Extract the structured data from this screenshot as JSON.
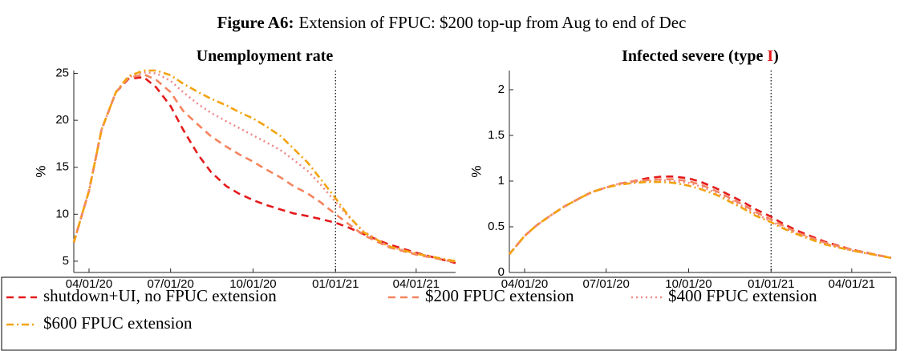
{
  "title": [
    "Figure A6:",
    "Extension of FPUC: $200 top-up from Aug to end of Dec"
  ],
  "chart_data": [
    {
      "type": "line",
      "title": [
        "Unemployment rate"
      ],
      "ylabel": "%",
      "x": [
        "03/15/20",
        "04/01/20",
        "04/15/20",
        "05/01/20",
        "05/15/20",
        "06/01/20",
        "06/15/20",
        "07/01/20",
        "07/15/20",
        "08/01/20",
        "08/15/20",
        "09/01/20",
        "09/15/20",
        "10/01/20",
        "10/15/20",
        "11/01/20",
        "11/15/20",
        "12/01/20",
        "12/15/20",
        "01/01/21",
        "01/15/21",
        "02/01/21",
        "03/01/21",
        "04/01/21",
        "05/15/21"
      ],
      "xlim": [
        "03/15/20",
        "05/15/21"
      ],
      "xticks": [
        "04/01/20",
        "07/01/20",
        "10/01/20",
        "01/01/21",
        "04/01/21"
      ],
      "vline": "01/01/21",
      "ylim": [
        3.8,
        25.3
      ],
      "yticks": [
        5,
        10,
        15,
        20,
        25
      ],
      "series": [
        {
          "name": "shutdown+UI, no FPUC extension",
          "color": "#e41a1c",
          "dash": "dashed",
          "values": [
            7.0,
            12.5,
            19.0,
            23.0,
            24.4,
            24.6,
            23.5,
            21.5,
            19.0,
            16.3,
            14.5,
            13.0,
            12.2,
            11.5,
            11.0,
            10.5,
            10.1,
            9.8,
            9.5,
            9.1,
            8.6,
            7.9,
            6.8,
            5.9,
            4.8
          ]
        },
        {
          "name": "$200 FPUC extension",
          "color": "#f4845f",
          "dash": "dashed",
          "values": [
            7.0,
            12.5,
            19.0,
            23.0,
            24.5,
            24.9,
            24.3,
            23.0,
            21.0,
            19.5,
            18.3,
            17.2,
            16.4,
            15.6,
            14.8,
            13.9,
            13.0,
            12.2,
            11.3,
            10.0,
            9.0,
            7.8,
            6.5,
            5.7,
            4.9
          ]
        },
        {
          "name": "$400 FPUC extension",
          "color": "#f08a8a",
          "dash": "dotted",
          "values": [
            7.0,
            12.5,
            19.0,
            23.0,
            24.6,
            25.1,
            25.0,
            24.2,
            23.0,
            21.7,
            20.8,
            19.9,
            19.2,
            18.4,
            17.7,
            16.8,
            15.8,
            14.6,
            13.2,
            11.3,
            9.8,
            8.2,
            6.6,
            5.8,
            5.0
          ]
        },
        {
          "name": "$600 FPUC extension",
          "color": "#f2a30f",
          "dash": "dashdot",
          "values": [
            7.0,
            12.5,
            19.0,
            23.0,
            24.7,
            25.3,
            25.3,
            24.8,
            23.9,
            23.0,
            22.3,
            21.6,
            20.9,
            20.2,
            19.4,
            18.3,
            17.0,
            15.5,
            13.8,
            11.7,
            9.9,
            8.1,
            6.6,
            5.8,
            5.0
          ]
        }
      ]
    },
    {
      "type": "line",
      "title": [
        "Infected severe (type ",
        "I",
        ")"
      ],
      "ylabel": "%",
      "x": [
        "03/15/20",
        "04/01/20",
        "04/15/20",
        "05/01/20",
        "05/15/20",
        "06/01/20",
        "06/15/20",
        "07/01/20",
        "07/15/20",
        "08/01/20",
        "08/15/20",
        "09/01/20",
        "09/15/20",
        "10/01/20",
        "10/15/20",
        "11/01/20",
        "11/15/20",
        "12/01/20",
        "12/15/20",
        "01/01/21",
        "01/15/21",
        "02/01/21",
        "03/01/21",
        "04/01/21",
        "05/15/21"
      ],
      "xlim": [
        "03/15/20",
        "05/15/21"
      ],
      "xticks": [
        "04/01/20",
        "07/01/20",
        "10/01/20",
        "01/01/21",
        "04/01/21"
      ],
      "vline": "01/01/21",
      "ylim": [
        0,
        2.21
      ],
      "yticks": [
        0,
        0.5,
        1,
        1.5,
        2
      ],
      "series": [
        {
          "name": "shutdown+UI, no FPUC extension",
          "color": "#e41a1c",
          "dash": "dashed",
          "values": [
            0.2,
            0.4,
            0.52,
            0.63,
            0.72,
            0.81,
            0.88,
            0.93,
            0.97,
            1.0,
            1.03,
            1.05,
            1.05,
            1.03,
            0.99,
            0.92,
            0.85,
            0.77,
            0.69,
            0.61,
            0.53,
            0.45,
            0.34,
            0.25,
            0.16
          ]
        },
        {
          "name": "$200 FPUC extension",
          "color": "#f4845f",
          "dash": "dashed",
          "values": [
            0.2,
            0.4,
            0.52,
            0.63,
            0.72,
            0.81,
            0.88,
            0.93,
            0.97,
            1.0,
            1.01,
            1.02,
            1.02,
            1.0,
            0.96,
            0.89,
            0.82,
            0.74,
            0.66,
            0.58,
            0.51,
            0.43,
            0.33,
            0.25,
            0.16
          ]
        },
        {
          "name": "$400 FPUC extension",
          "color": "#f08a8a",
          "dash": "dotted",
          "values": [
            0.2,
            0.4,
            0.52,
            0.63,
            0.72,
            0.81,
            0.88,
            0.93,
            0.97,
            0.99,
            1.0,
            1.01,
            1.0,
            0.98,
            0.94,
            0.87,
            0.8,
            0.72,
            0.64,
            0.56,
            0.49,
            0.42,
            0.32,
            0.24,
            0.16
          ]
        },
        {
          "name": "$600 FPUC extension",
          "color": "#f2a30f",
          "dash": "dashdot",
          "values": [
            0.2,
            0.4,
            0.52,
            0.63,
            0.72,
            0.81,
            0.88,
            0.93,
            0.96,
            0.98,
            0.99,
            0.99,
            0.98,
            0.95,
            0.91,
            0.85,
            0.78,
            0.7,
            0.62,
            0.55,
            0.48,
            0.41,
            0.31,
            0.24,
            0.16
          ]
        }
      ]
    }
  ]
}
